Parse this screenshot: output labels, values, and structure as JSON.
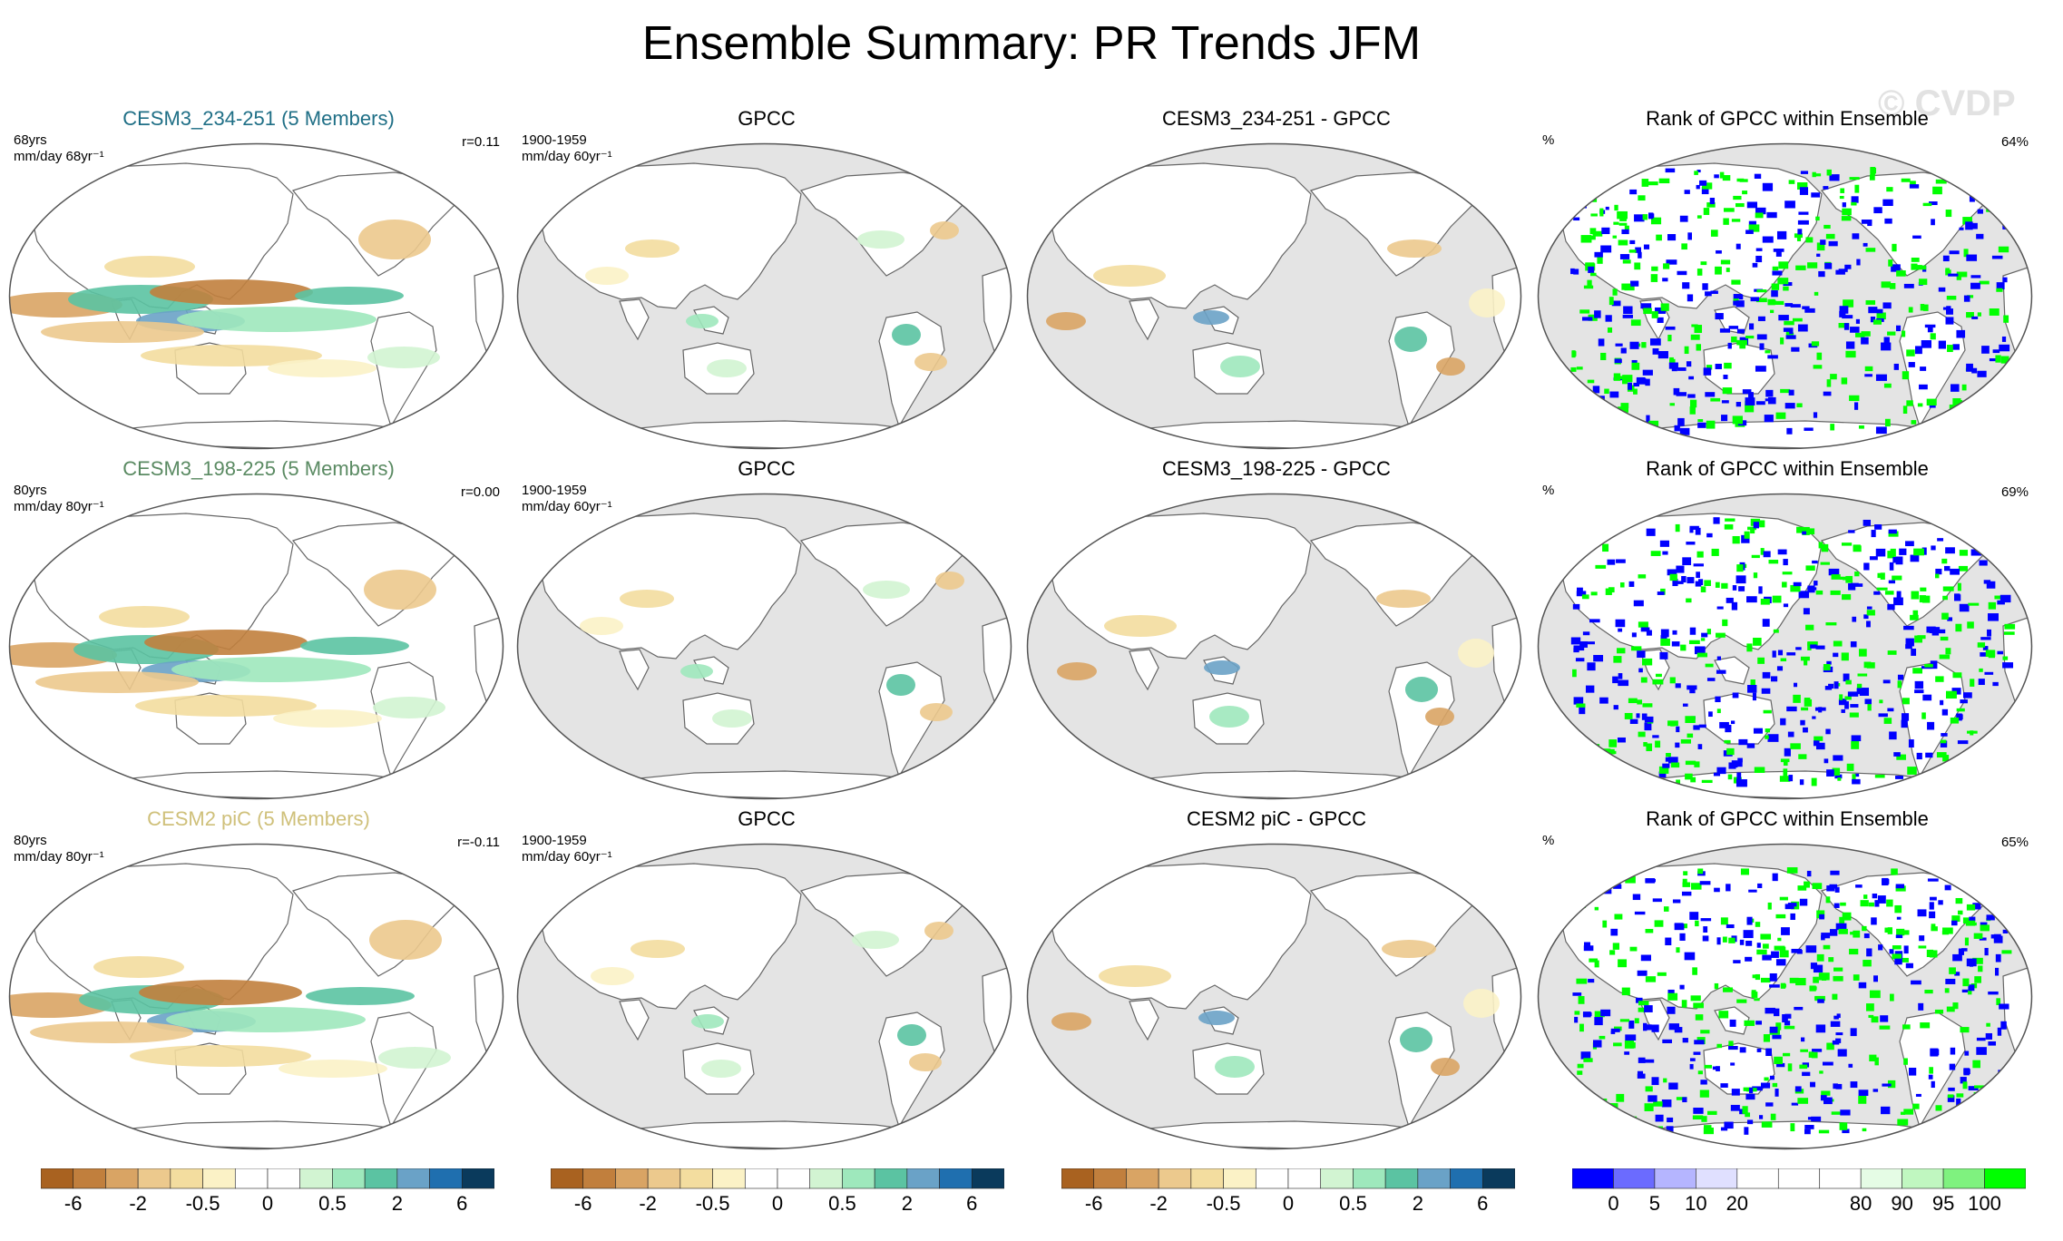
{
  "title": "Ensemble Summary: PR Trends JFM",
  "watermark": "© CVDP",
  "colors": {
    "ocean": "#e4e4e4",
    "land": "#ffffff",
    "outline": "#555555",
    "coast": "#666666",
    "title_row1": "#1f6f86",
    "title_row2": "#5a8a62",
    "title_row3": "#cfc07a"
  },
  "rows": [
    {
      "panels": [
        {
          "title": "CESM3_234-251 (5 Members)",
          "note_top": "68yrs",
          "note_bottom": "mm/day 68yr⁻¹",
          "corr": "r=0.11",
          "kind": "model"
        },
        {
          "title": "GPCC",
          "note_top": "1900-1959",
          "note_bottom": "mm/day 60yr⁻¹",
          "corr": "",
          "kind": "obs"
        },
        {
          "title": "CESM3_234-251 - GPCC",
          "note_top": "",
          "note_bottom": "",
          "corr": "",
          "kind": "diff"
        },
        {
          "title": "Rank of GPCC within Ensemble",
          "note_top": "%",
          "note_bottom": "",
          "corr": "64%",
          "kind": "rank"
        }
      ]
    },
    {
      "panels": [
        {
          "title": "CESM3_198-225 (5 Members)",
          "note_top": "80yrs",
          "note_bottom": "mm/day 80yr⁻¹",
          "corr": "r=0.00",
          "kind": "model"
        },
        {
          "title": "GPCC",
          "note_top": "1900-1959",
          "note_bottom": "mm/day 60yr⁻¹",
          "corr": "",
          "kind": "obs"
        },
        {
          "title": "CESM3_198-225 - GPCC",
          "note_top": "",
          "note_bottom": "",
          "corr": "",
          "kind": "diff"
        },
        {
          "title": "Rank of GPCC within Ensemble",
          "note_top": "%",
          "note_bottom": "",
          "corr": "69%",
          "kind": "rank"
        }
      ]
    },
    {
      "panels": [
        {
          "title": "CESM2 piC (5 Members)",
          "note_top": "80yrs",
          "note_bottom": "mm/day 80yr⁻¹",
          "corr": "r=-0.11",
          "kind": "model"
        },
        {
          "title": "GPCC",
          "note_top": "1900-1959",
          "note_bottom": "mm/day 60yr⁻¹",
          "corr": "",
          "kind": "obs"
        },
        {
          "title": "CESM2 piC - GPCC",
          "note_top": "",
          "note_bottom": "",
          "corr": "",
          "kind": "diff"
        },
        {
          "title": "Rank of GPCC within Ensemble",
          "note_top": "%",
          "note_bottom": "",
          "corr": "65%",
          "kind": "rank"
        }
      ]
    }
  ],
  "colorbars": {
    "trend": {
      "colors": [
        "#a96220",
        "#c17f3d",
        "#d9a464",
        "#ecc98d",
        "#f3dd9f",
        "#fbf2c6",
        "#ffffff",
        "#ffffff",
        "#d2f4d2",
        "#9ee8bc",
        "#5bc3a2",
        "#6aa2c7",
        "#1f6faf",
        "#0a3a5c"
      ],
      "labels": [
        "-6",
        "-2",
        "-0.5",
        "0",
        "0.5",
        "2",
        "6"
      ],
      "label_bounds": [
        1,
        3,
        5,
        7,
        9,
        11,
        13
      ]
    },
    "rank": {
      "colors": [
        "#0000ff",
        "#6b6bff",
        "#b5b5ff",
        "#e0e0ff",
        "#ffffff",
        "#ffffff",
        "#ffffff",
        "#e5fce5",
        "#c0f7c0",
        "#7ff27f",
        "#00ff00"
      ],
      "labels": [
        "0",
        "5",
        "10",
        "20",
        "80",
        "90",
        "95",
        "100"
      ],
      "label_bounds": [
        1,
        2,
        3,
        4,
        7,
        8,
        9,
        10
      ]
    }
  }
}
